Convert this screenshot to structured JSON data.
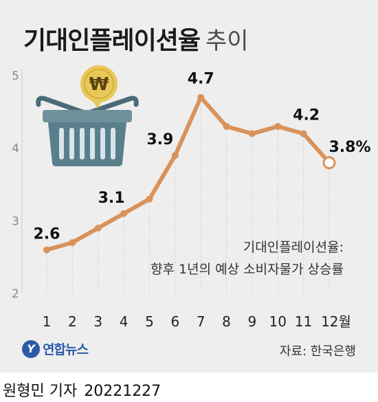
{
  "title": {
    "main": "기대인플레이션율",
    "sub": "추이"
  },
  "note": {
    "line1": "기대인플레이션율:",
    "line2": "향후 1년의 예상 소비자물가 상승률"
  },
  "source": "자료: 한국은행",
  "logo": {
    "mark": "Y",
    "text": "연합뉴스"
  },
  "byline": {
    "author": "원형민 기자",
    "date": "20221227"
  },
  "colors": {
    "line": "#d9925a",
    "point": "#d9925a",
    "last_point_fill": "#ffffff",
    "grid": "#c9c9c9",
    "background": "#eeeeee",
    "basket": "#5a7f8c",
    "coin": "#e8c85a"
  },
  "chart_data": {
    "type": "line",
    "title": "기대인플레이션율 추이",
    "x": [
      "1",
      "2",
      "3",
      "4",
      "5",
      "6",
      "7",
      "8",
      "9",
      "10",
      "11",
      "12월"
    ],
    "series": [
      {
        "values": [
          2.6,
          2.7,
          2.9,
          3.1,
          3.3,
          3.9,
          4.7,
          4.3,
          4.2,
          4.3,
          4.2,
          3.8
        ]
      }
    ],
    "data_labels": [
      {
        "index": 0,
        "text": "2.6"
      },
      {
        "index": 3,
        "text": "3.1"
      },
      {
        "index": 5,
        "text": "3.9"
      },
      {
        "index": 6,
        "text": "4.7"
      },
      {
        "index": 10,
        "text": "4.2"
      },
      {
        "index": 11,
        "text": "3.8%"
      }
    ],
    "ylim": [
      2,
      5
    ],
    "yticks": [
      "2",
      "3",
      "4",
      "5"
    ],
    "grid": "vertical-dotted"
  }
}
